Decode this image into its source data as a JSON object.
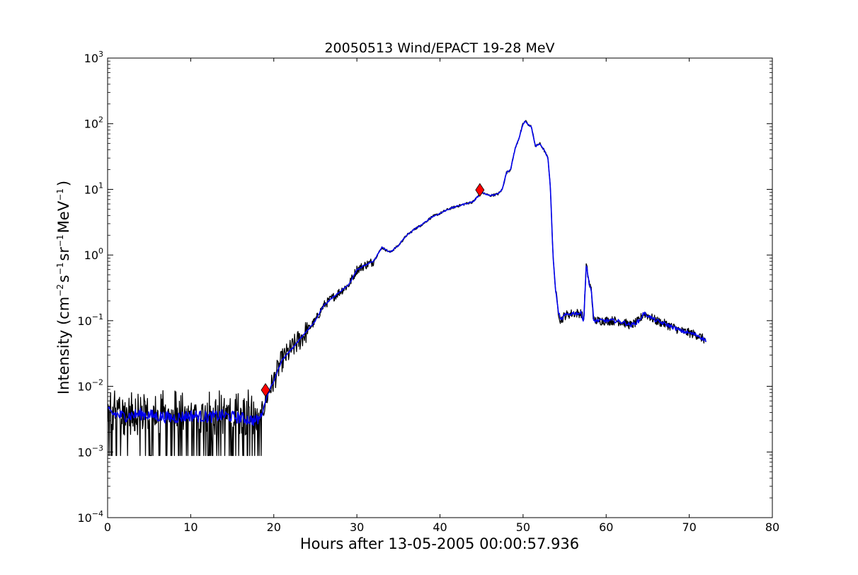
{
  "chart_data": {
    "type": "line",
    "title": "20050513 Wind/EPACT 19-28 MeV",
    "xlabel": "Hours after 13-05-2005 00:00:57.936",
    "ylabel": {
      "prefix": "Intensity (cm",
      "exp1": "−2",
      "s": "s",
      "exp2": "−1",
      "sr": "sr",
      "exp3": "−1",
      "mev": "MeV",
      "exp4": "−1",
      "suffix": ")"
    },
    "yscale": "log",
    "xlim": [
      0,
      80
    ],
    "ylim": [
      0.0001,
      1000
    ],
    "grid": false,
    "x_ticks": [
      0,
      10,
      20,
      30,
      40,
      50,
      60,
      70,
      80
    ],
    "x_tick_labels": [
      "0",
      "10",
      "20",
      "30",
      "40",
      "50",
      "60",
      "70",
      "80"
    ],
    "y_ticks": [
      {
        "base": "10",
        "exp": "−4",
        "value": 0.0001
      },
      {
        "base": "10",
        "exp": "−3",
        "value": 0.001
      },
      {
        "base": "10",
        "exp": "−2",
        "value": 0.01
      },
      {
        "base": "10",
        "exp": "−1",
        "value": 0.1
      },
      {
        "base": "10",
        "exp": "0",
        "value": 1
      },
      {
        "base": "10",
        "exp": "1",
        "value": 10
      },
      {
        "base": "10",
        "exp": "2",
        "value": 100
      },
      {
        "base": "10",
        "exp": "3",
        "value": 1000
      }
    ],
    "series": [
      {
        "color": "#000000",
        "style": "raw",
        "x": [
          0,
          2,
          4,
          6,
          8,
          10,
          12,
          14,
          16,
          17.9,
          18.5,
          19,
          19.5,
          20,
          20.5,
          21,
          22,
          23,
          24,
          25,
          26,
          27,
          28,
          29,
          30,
          31,
          32,
          33,
          34,
          35,
          36,
          37,
          38,
          39,
          40,
          41,
          42,
          43,
          44,
          45,
          46,
          47,
          47.5,
          48,
          48.5,
          49,
          49.5,
          50,
          50.3,
          50.7,
          51,
          51.5,
          52,
          52.5,
          53,
          53.3,
          53.6,
          53.9,
          54.2,
          54.5,
          55,
          56,
          57,
          57.3,
          57.6,
          58,
          58.2,
          58.5,
          59,
          60,
          61,
          62,
          63,
          64,
          64.5,
          65,
          66,
          67,
          68,
          69,
          70,
          71,
          72
        ],
        "y": [
          0.0035,
          0.0035,
          0.0035,
          0.0035,
          0.0035,
          0.0035,
          0.0035,
          0.0035,
          0.0035,
          0.003,
          0.0035,
          0.006,
          0.009,
          0.012,
          0.018,
          0.025,
          0.035,
          0.05,
          0.07,
          0.1,
          0.17,
          0.22,
          0.28,
          0.35,
          0.6,
          0.7,
          0.8,
          1.3,
          1.1,
          1.4,
          2.0,
          2.5,
          3.0,
          3.8,
          4.3,
          5.0,
          5.5,
          6.0,
          6.5,
          9.0,
          8.0,
          8.5,
          10,
          18,
          20,
          40,
          60,
          100,
          110,
          95,
          90,
          45,
          50,
          40,
          30,
          10,
          1,
          0.3,
          0.15,
          0.1,
          0.12,
          0.13,
          0.13,
          0.1,
          0.7,
          0.35,
          0.3,
          0.1,
          0.1,
          0.1,
          0.1,
          0.095,
          0.085,
          0.1,
          0.13,
          0.12,
          0.1,
          0.09,
          0.08,
          0.07,
          0.065,
          0.06,
          0.05
        ]
      },
      {
        "color": "#0000ee",
        "style": "smoothed",
        "x": [
          0,
          2,
          4,
          6,
          8,
          10,
          12,
          14,
          16,
          17.9,
          18.5,
          19,
          19.5,
          20,
          20.5,
          21,
          22,
          23,
          24,
          25,
          26,
          27,
          28,
          29,
          30,
          31,
          32,
          33,
          34,
          35,
          36,
          37,
          38,
          39,
          40,
          41,
          42,
          43,
          44,
          45,
          46,
          47,
          47.5,
          48,
          48.5,
          49,
          49.5,
          50,
          50.3,
          50.7,
          51,
          51.5,
          52,
          52.5,
          53,
          53.3,
          53.6,
          53.9,
          54.2,
          54.5,
          55,
          56,
          57,
          57.3,
          57.6,
          58,
          58.2,
          58.5,
          59,
          60,
          61,
          62,
          63,
          64,
          64.5,
          65,
          66,
          67,
          68,
          69,
          70,
          71,
          72
        ],
        "y": [
          0.004,
          0.0035,
          0.0038,
          0.0035,
          0.0033,
          0.0036,
          0.0034,
          0.0036,
          0.0033,
          0.003,
          0.0034,
          0.006,
          0.009,
          0.012,
          0.018,
          0.025,
          0.035,
          0.05,
          0.07,
          0.1,
          0.17,
          0.22,
          0.28,
          0.35,
          0.6,
          0.7,
          0.8,
          1.3,
          1.1,
          1.4,
          2.0,
          2.5,
          3.0,
          3.8,
          4.3,
          5.0,
          5.5,
          6.0,
          6.5,
          9.0,
          8.0,
          8.5,
          10,
          18,
          20,
          40,
          60,
          100,
          110,
          95,
          90,
          45,
          50,
          40,
          30,
          10,
          1,
          0.3,
          0.15,
          0.1,
          0.12,
          0.13,
          0.13,
          0.1,
          0.7,
          0.35,
          0.3,
          0.1,
          0.1,
          0.1,
          0.1,
          0.095,
          0.085,
          0.1,
          0.13,
          0.12,
          0.1,
          0.09,
          0.08,
          0.07,
          0.065,
          0.06,
          0.05
        ]
      }
    ],
    "markers": [
      {
        "x": 19.0,
        "y": 0.0088,
        "shape": "diamond",
        "color": "#ff0000"
      },
      {
        "x": 44.8,
        "y": 9.8,
        "shape": "diamond",
        "color": "#ff0000"
      }
    ]
  }
}
